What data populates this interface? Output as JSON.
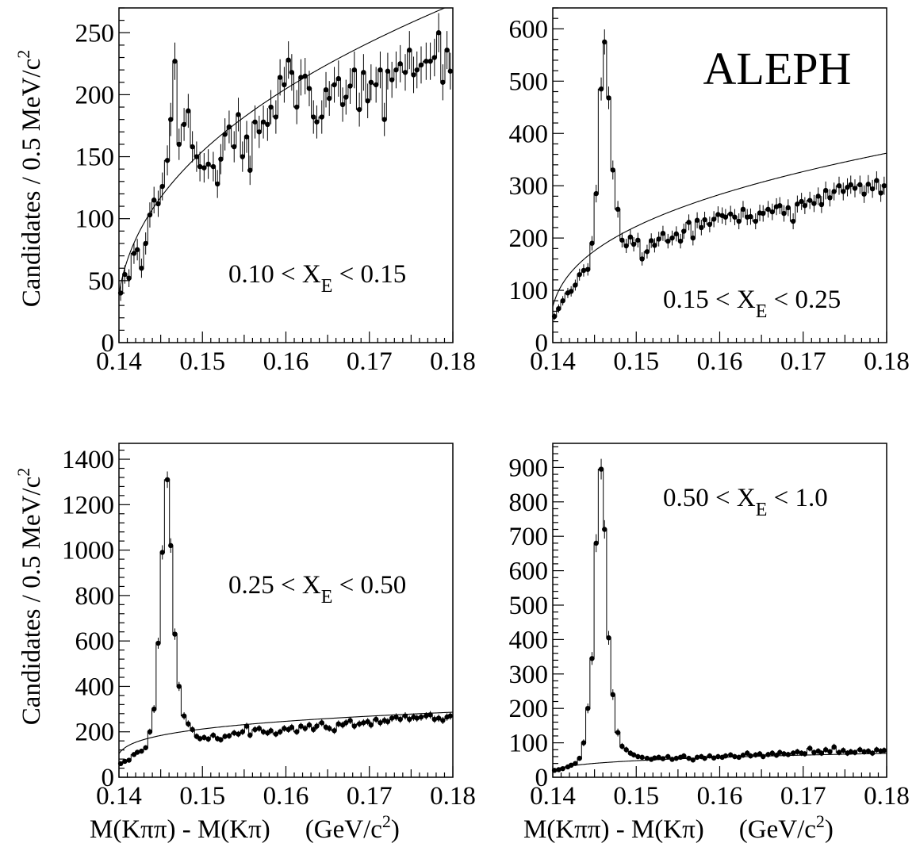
{
  "figure": {
    "experiment_label": "ALEPH",
    "ylabel_main": "Candidates / 0.5 MeV/c",
    "ylabel_sup": "2",
    "xlabel_main": "M(Kππ) - M(Kπ)",
    "xlabel_unit_prefix": "(GeV/c",
    "xlabel_unit_sup": "2",
    "xlabel_unit_suffix": ")"
  },
  "chart_data": [
    {
      "type": "scatter",
      "cut_label": {
        "lhs": "0.10 < X",
        "sub": "E",
        "rhs": " < 0.15"
      },
      "xlim": [
        0.14,
        0.18
      ],
      "ylim": [
        0,
        270
      ],
      "xticks": [
        "0.14",
        "0.15",
        "0.16",
        "0.17",
        "0.18"
      ],
      "yticks": [
        0,
        50,
        100,
        150,
        200,
        250
      ],
      "ytick_labels": [
        "0",
        "50",
        "100",
        "150",
        "200",
        "250"
      ],
      "grid": false,
      "peak": {
        "mean": 0.1454,
        "sigma": 0.00045,
        "amplitude": 60
      },
      "background_fit": {
        "form": "A*(dm-0.1396)^p",
        "A": 1050,
        "p": 0.42,
        "x0": 0.1396
      },
      "series": [
        {
          "marker": "filled-circle-with-error-bars",
          "x": [
            0.1402,
            0.1407,
            0.1412,
            0.1418,
            0.1422,
            0.1427,
            0.1432,
            0.1437,
            0.1442,
            0.1447,
            0.1452,
            0.1458,
            0.1462,
            0.1467,
            0.1472,
            0.1478,
            0.1483,
            0.1488,
            0.1493,
            0.1497,
            0.1502,
            0.1507,
            0.1513,
            0.1518,
            0.1522,
            0.1527,
            0.1532,
            0.1538,
            0.1543,
            0.1548,
            0.1553,
            0.1557,
            0.1563,
            0.1568,
            0.1573,
            0.1578,
            0.1582,
            0.1588,
            0.1593,
            0.1598,
            0.1603,
            0.1607,
            0.1613,
            0.1618,
            0.1623,
            0.1628,
            0.1633,
            0.1637,
            0.1643,
            0.1648,
            0.1652,
            0.1658,
            0.1663,
            0.1668,
            0.1672,
            0.1677,
            0.1682,
            0.1688,
            0.1693,
            0.1698,
            0.1702,
            0.1708,
            0.1713,
            0.1718,
            0.1722,
            0.1727,
            0.1732,
            0.1737,
            0.1743,
            0.1748,
            0.1753,
            0.1757,
            0.1762,
            0.1768,
            0.1773,
            0.1778,
            0.1783,
            0.1788,
            0.1793,
            0.1797
          ],
          "y": [
            40,
            55,
            52,
            72,
            75,
            60,
            80,
            103,
            115,
            112,
            126,
            147,
            180,
            227,
            160,
            176,
            187,
            158,
            150,
            142,
            141,
            144,
            142,
            128,
            148,
            168,
            174,
            158,
            184,
            150,
            166,
            139,
            178,
            170,
            178,
            176,
            190,
            182,
            214,
            208,
            228,
            218,
            190,
            214,
            215,
            205,
            182,
            178,
            182,
            204,
            197,
            208,
            213,
            192,
            198,
            207,
            220,
            188,
            218,
            195,
            210,
            208,
            220,
            180,
            219,
            212,
            220,
            225,
            218,
            236,
            216,
            220,
            224,
            227,
            227,
            230,
            250,
            210,
            236,
            219
          ]
        }
      ]
    },
    {
      "type": "scatter",
      "cut_label": {
        "lhs": "0.15 < X",
        "sub": "E",
        "rhs": " < 0.25"
      },
      "xlim": [
        0.14,
        0.18
      ],
      "ylim": [
        0,
        640
      ],
      "xticks": [
        "0.14",
        "0.15",
        "0.16",
        "0.17",
        "0.18"
      ],
      "yticks": [
        0,
        100,
        200,
        300,
        400,
        500,
        600
      ],
      "ytick_labels": [
        "0",
        "100",
        "200",
        "300",
        "400",
        "500",
        "600"
      ],
      "grid": false,
      "peak": {
        "mean": 0.1454,
        "sigma": 0.00042,
        "amplitude": 410
      },
      "background_fit": {
        "form": "A*(dm-0.1396)^p",
        "A": 1150,
        "p": 0.36,
        "x0": 0.1396
      },
      "series": [
        {
          "marker": "filled-circle-with-error-bars",
          "x": [
            0.1402,
            0.1407,
            0.1412,
            0.1418,
            0.1422,
            0.1427,
            0.1432,
            0.1437,
            0.1442,
            0.1447,
            0.1452,
            0.1458,
            0.1462,
            0.1467,
            0.1472,
            0.1478,
            0.1483,
            0.1488,
            0.1493,
            0.1497,
            0.1502,
            0.1507,
            0.1513,
            0.1518,
            0.1522,
            0.1527,
            0.1532,
            0.1538,
            0.1543,
            0.1548,
            0.1553,
            0.1557,
            0.1563,
            0.1568,
            0.1573,
            0.1578,
            0.1582,
            0.1588,
            0.1593,
            0.1598,
            0.1603,
            0.1607,
            0.1613,
            0.1618,
            0.1623,
            0.1628,
            0.1633,
            0.1637,
            0.1643,
            0.1648,
            0.1652,
            0.1658,
            0.1663,
            0.1668,
            0.1672,
            0.1677,
            0.1682,
            0.1688,
            0.1693,
            0.1698,
            0.1702,
            0.1708,
            0.1713,
            0.1718,
            0.1722,
            0.1727,
            0.1732,
            0.1737,
            0.1743,
            0.1748,
            0.1753,
            0.1757,
            0.1762,
            0.1768,
            0.1773,
            0.1778,
            0.1783,
            0.1788,
            0.1793,
            0.1797
          ],
          "y": [
            50,
            65,
            80,
            95,
            98,
            110,
            130,
            138,
            140,
            190,
            285,
            485,
            575,
            468,
            330,
            255,
            196,
            185,
            202,
            188,
            196,
            160,
            174,
            195,
            186,
            198,
            209,
            194,
            200,
            208,
            194,
            213,
            230,
            200,
            234,
            220,
            235,
            226,
            236,
            245,
            243,
            240,
            246,
            240,
            232,
            255,
            240,
            241,
            232,
            248,
            247,
            255,
            250,
            260,
            262,
            247,
            258,
            232,
            265,
            270,
            262,
            272,
            266,
            280,
            264,
            291,
            277,
            289,
            300,
            289,
            297,
            302,
            295,
            302,
            284,
            303,
            294,
            310,
            286,
            300
          ]
        }
      ]
    },
    {
      "type": "scatter",
      "cut_label": {
        "lhs": "0.25 < X",
        "sub": "E",
        "rhs": " < 0.50"
      },
      "xlim": [
        0.14,
        0.18
      ],
      "ylim": [
        0,
        1470
      ],
      "xticks": [
        "0.14",
        "0.15",
        "0.16",
        "0.17",
        "0.18"
      ],
      "yticks": [
        0,
        200,
        400,
        600,
        800,
        1000,
        1200,
        1400
      ],
      "ytick_labels": [
        "0",
        "200",
        "400",
        "600",
        "800",
        "1000",
        "1200",
        "1400"
      ],
      "grid": false,
      "peak": {
        "mean": 0.1455,
        "sigma": 0.0004,
        "amplitude": 1150
      },
      "background_fit": {
        "form": "A*(dm-0.1396)^p",
        "A": 580,
        "p": 0.22,
        "x0": 0.1396
      },
      "series": [
        {
          "marker": "filled-circle-with-error-bars",
          "x": [
            0.1402,
            0.1407,
            0.1412,
            0.1418,
            0.1422,
            0.1427,
            0.1432,
            0.1437,
            0.1442,
            0.1447,
            0.1452,
            0.1458,
            0.1462,
            0.1467,
            0.1472,
            0.1478,
            0.1483,
            0.1488,
            0.1493,
            0.1497,
            0.1502,
            0.1507,
            0.1513,
            0.1518,
            0.1522,
            0.1527,
            0.1532,
            0.1538,
            0.1543,
            0.1548,
            0.1553,
            0.1557,
            0.1563,
            0.1568,
            0.1573,
            0.1578,
            0.1582,
            0.1588,
            0.1593,
            0.1598,
            0.1603,
            0.1607,
            0.1613,
            0.1618,
            0.1623,
            0.1628,
            0.1633,
            0.1637,
            0.1643,
            0.1648,
            0.1652,
            0.1658,
            0.1663,
            0.1668,
            0.1672,
            0.1677,
            0.1682,
            0.1688,
            0.1693,
            0.1698,
            0.1702,
            0.1708,
            0.1713,
            0.1718,
            0.1722,
            0.1727,
            0.1732,
            0.1737,
            0.1743,
            0.1748,
            0.1753,
            0.1757,
            0.1762,
            0.1768,
            0.1773,
            0.1778,
            0.1783,
            0.1788,
            0.1793,
            0.1797
          ],
          "y": [
            60,
            70,
            75,
            100,
            110,
            115,
            130,
            200,
            300,
            590,
            990,
            1310,
            1020,
            630,
            400,
            270,
            235,
            210,
            180,
            170,
            175,
            168,
            185,
            170,
            165,
            180,
            182,
            195,
            190,
            200,
            225,
            185,
            210,
            215,
            200,
            195,
            205,
            190,
            200,
            215,
            210,
            220,
            200,
            225,
            215,
            230,
            210,
            225,
            240,
            220,
            215,
            205,
            235,
            230,
            240,
            250,
            225,
            235,
            240,
            245,
            230,
            255,
            240,
            250,
            245,
            260,
            265,
            255,
            270,
            255,
            265,
            260,
            265,
            270,
            275,
            255,
            260,
            250,
            265,
            270
          ]
        }
      ]
    },
    {
      "type": "scatter",
      "cut_label": {
        "lhs": "0.50 < X",
        "sub": "E",
        "rhs": " < 1.0"
      },
      "xlim": [
        0.14,
        0.18
      ],
      "ylim": [
        0,
        970
      ],
      "xticks": [
        "0.14",
        "0.15",
        "0.16",
        "0.17",
        "0.18"
      ],
      "yticks": [
        0,
        100,
        200,
        300,
        400,
        500,
        600,
        700,
        800,
        900
      ],
      "ytick_labels": [
        "0",
        "100",
        "200",
        "300",
        "400",
        "500",
        "600",
        "700",
        "800",
        "900"
      ],
      "grid": false,
      "peak": {
        "mean": 0.1455,
        "sigma": 0.00038,
        "amplitude": 860
      },
      "background_fit": {
        "form": "A*(dm-0.1396)^p",
        "A": 165,
        "p": 0.27,
        "x0": 0.1396
      },
      "series": [
        {
          "marker": "filled-circle-with-error-bars",
          "x": [
            0.1402,
            0.1407,
            0.1412,
            0.1418,
            0.1422,
            0.1427,
            0.1432,
            0.1437,
            0.1442,
            0.1447,
            0.1452,
            0.1458,
            0.1462,
            0.1467,
            0.1472,
            0.1478,
            0.1483,
            0.1488,
            0.1493,
            0.1497,
            0.1502,
            0.1507,
            0.1513,
            0.1518,
            0.1522,
            0.1527,
            0.1532,
            0.1538,
            0.1543,
            0.1548,
            0.1553,
            0.1557,
            0.1563,
            0.1568,
            0.1573,
            0.1578,
            0.1582,
            0.1588,
            0.1593,
            0.1598,
            0.1603,
            0.1607,
            0.1613,
            0.1618,
            0.1623,
            0.1628,
            0.1633,
            0.1637,
            0.1643,
            0.1648,
            0.1652,
            0.1658,
            0.1663,
            0.1668,
            0.1672,
            0.1677,
            0.1682,
            0.1688,
            0.1693,
            0.1698,
            0.1702,
            0.1708,
            0.1713,
            0.1718,
            0.1722,
            0.1727,
            0.1732,
            0.1737,
            0.1743,
            0.1748,
            0.1753,
            0.1757,
            0.1762,
            0.1768,
            0.1773,
            0.1778,
            0.1783,
            0.1788,
            0.1793,
            0.1797
          ],
          "y": [
            20,
            22,
            25,
            30,
            35,
            40,
            55,
            100,
            200,
            345,
            680,
            895,
            720,
            405,
            240,
            130,
            90,
            80,
            70,
            65,
            60,
            58,
            55,
            52,
            56,
            58,
            54,
            60,
            52,
            55,
            58,
            62,
            55,
            50,
            58,
            60,
            55,
            62,
            56,
            60,
            58,
            62,
            65,
            60,
            58,
            64,
            70,
            62,
            65,
            68,
            60,
            66,
            70,
            64,
            72,
            68,
            66,
            70,
            74,
            70,
            68,
            84,
            72,
            76,
            70,
            80,
            74,
            88,
            72,
            78,
            70,
            74,
            72,
            80,
            74,
            76,
            70,
            80,
            76,
            78
          ]
        }
      ]
    }
  ]
}
